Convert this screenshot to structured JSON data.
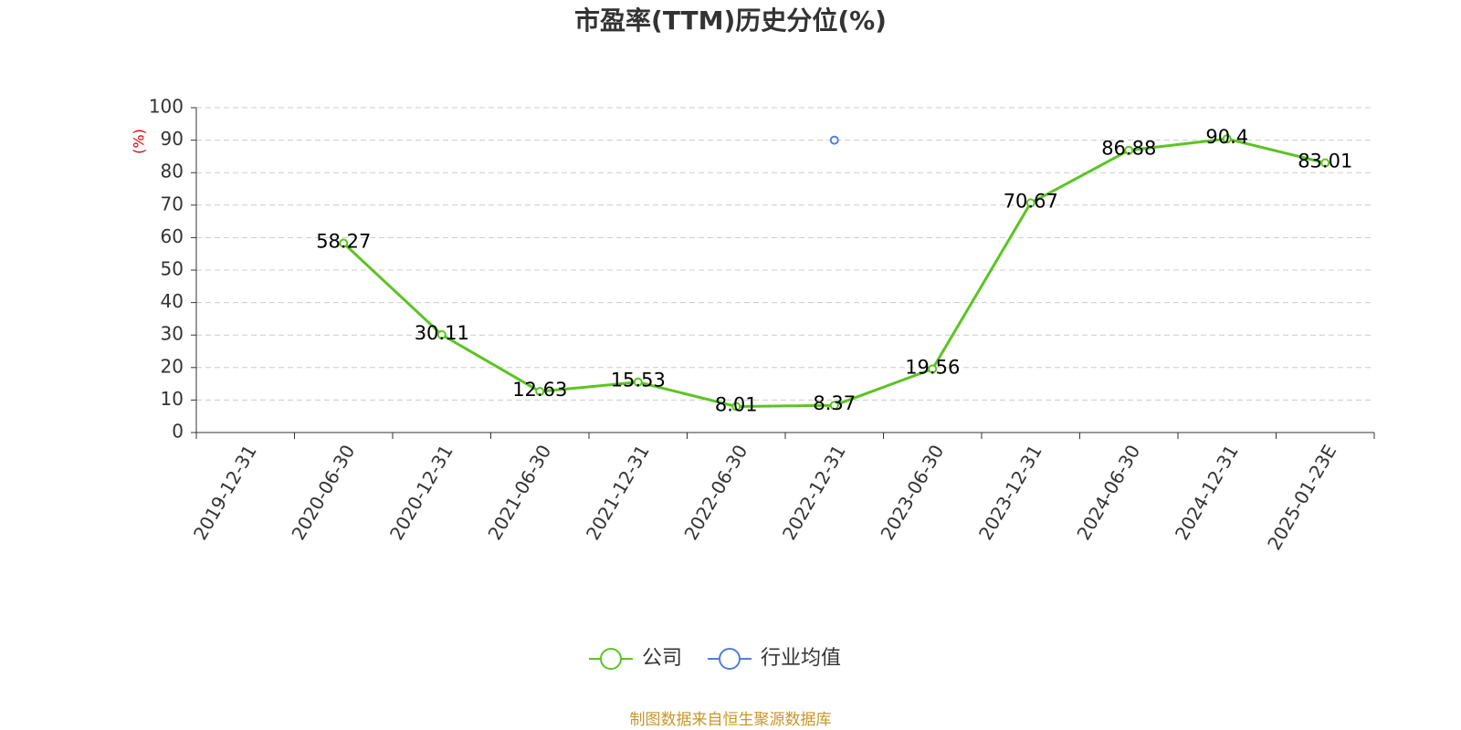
{
  "chart_data": {
    "type": "line",
    "title": "市盈率(TTM)历史分位(%)",
    "y_label": "(%)",
    "source": "制图数据来自恒生聚源数据库",
    "categories": [
      "2019-12-31",
      "2020-06-30",
      "2020-12-31",
      "2021-06-30",
      "2021-12-31",
      "2022-06-30",
      "2022-12-31",
      "2023-06-30",
      "2023-12-31",
      "2024-06-30",
      "2024-12-31",
      "2025-01-23E"
    ],
    "series": [
      {
        "name": "公司",
        "color": "#5bc424",
        "values": [
          null,
          58.27,
          30.11,
          12.63,
          15.53,
          8.01,
          8.37,
          19.56,
          70.67,
          86.88,
          90.4,
          83.01
        ],
        "show_labels": true
      },
      {
        "name": "行业均值",
        "color": "#4e7fdc",
        "values": [
          null,
          null,
          null,
          null,
          null,
          null,
          90,
          null,
          null,
          null,
          null,
          null
        ],
        "show_labels": false
      }
    ],
    "ylim": [
      0,
      100
    ],
    "yticks": [
      0,
      10,
      20,
      30,
      40,
      50,
      60,
      70,
      80,
      90,
      100
    ],
    "grid": true,
    "legend": "bottom"
  }
}
